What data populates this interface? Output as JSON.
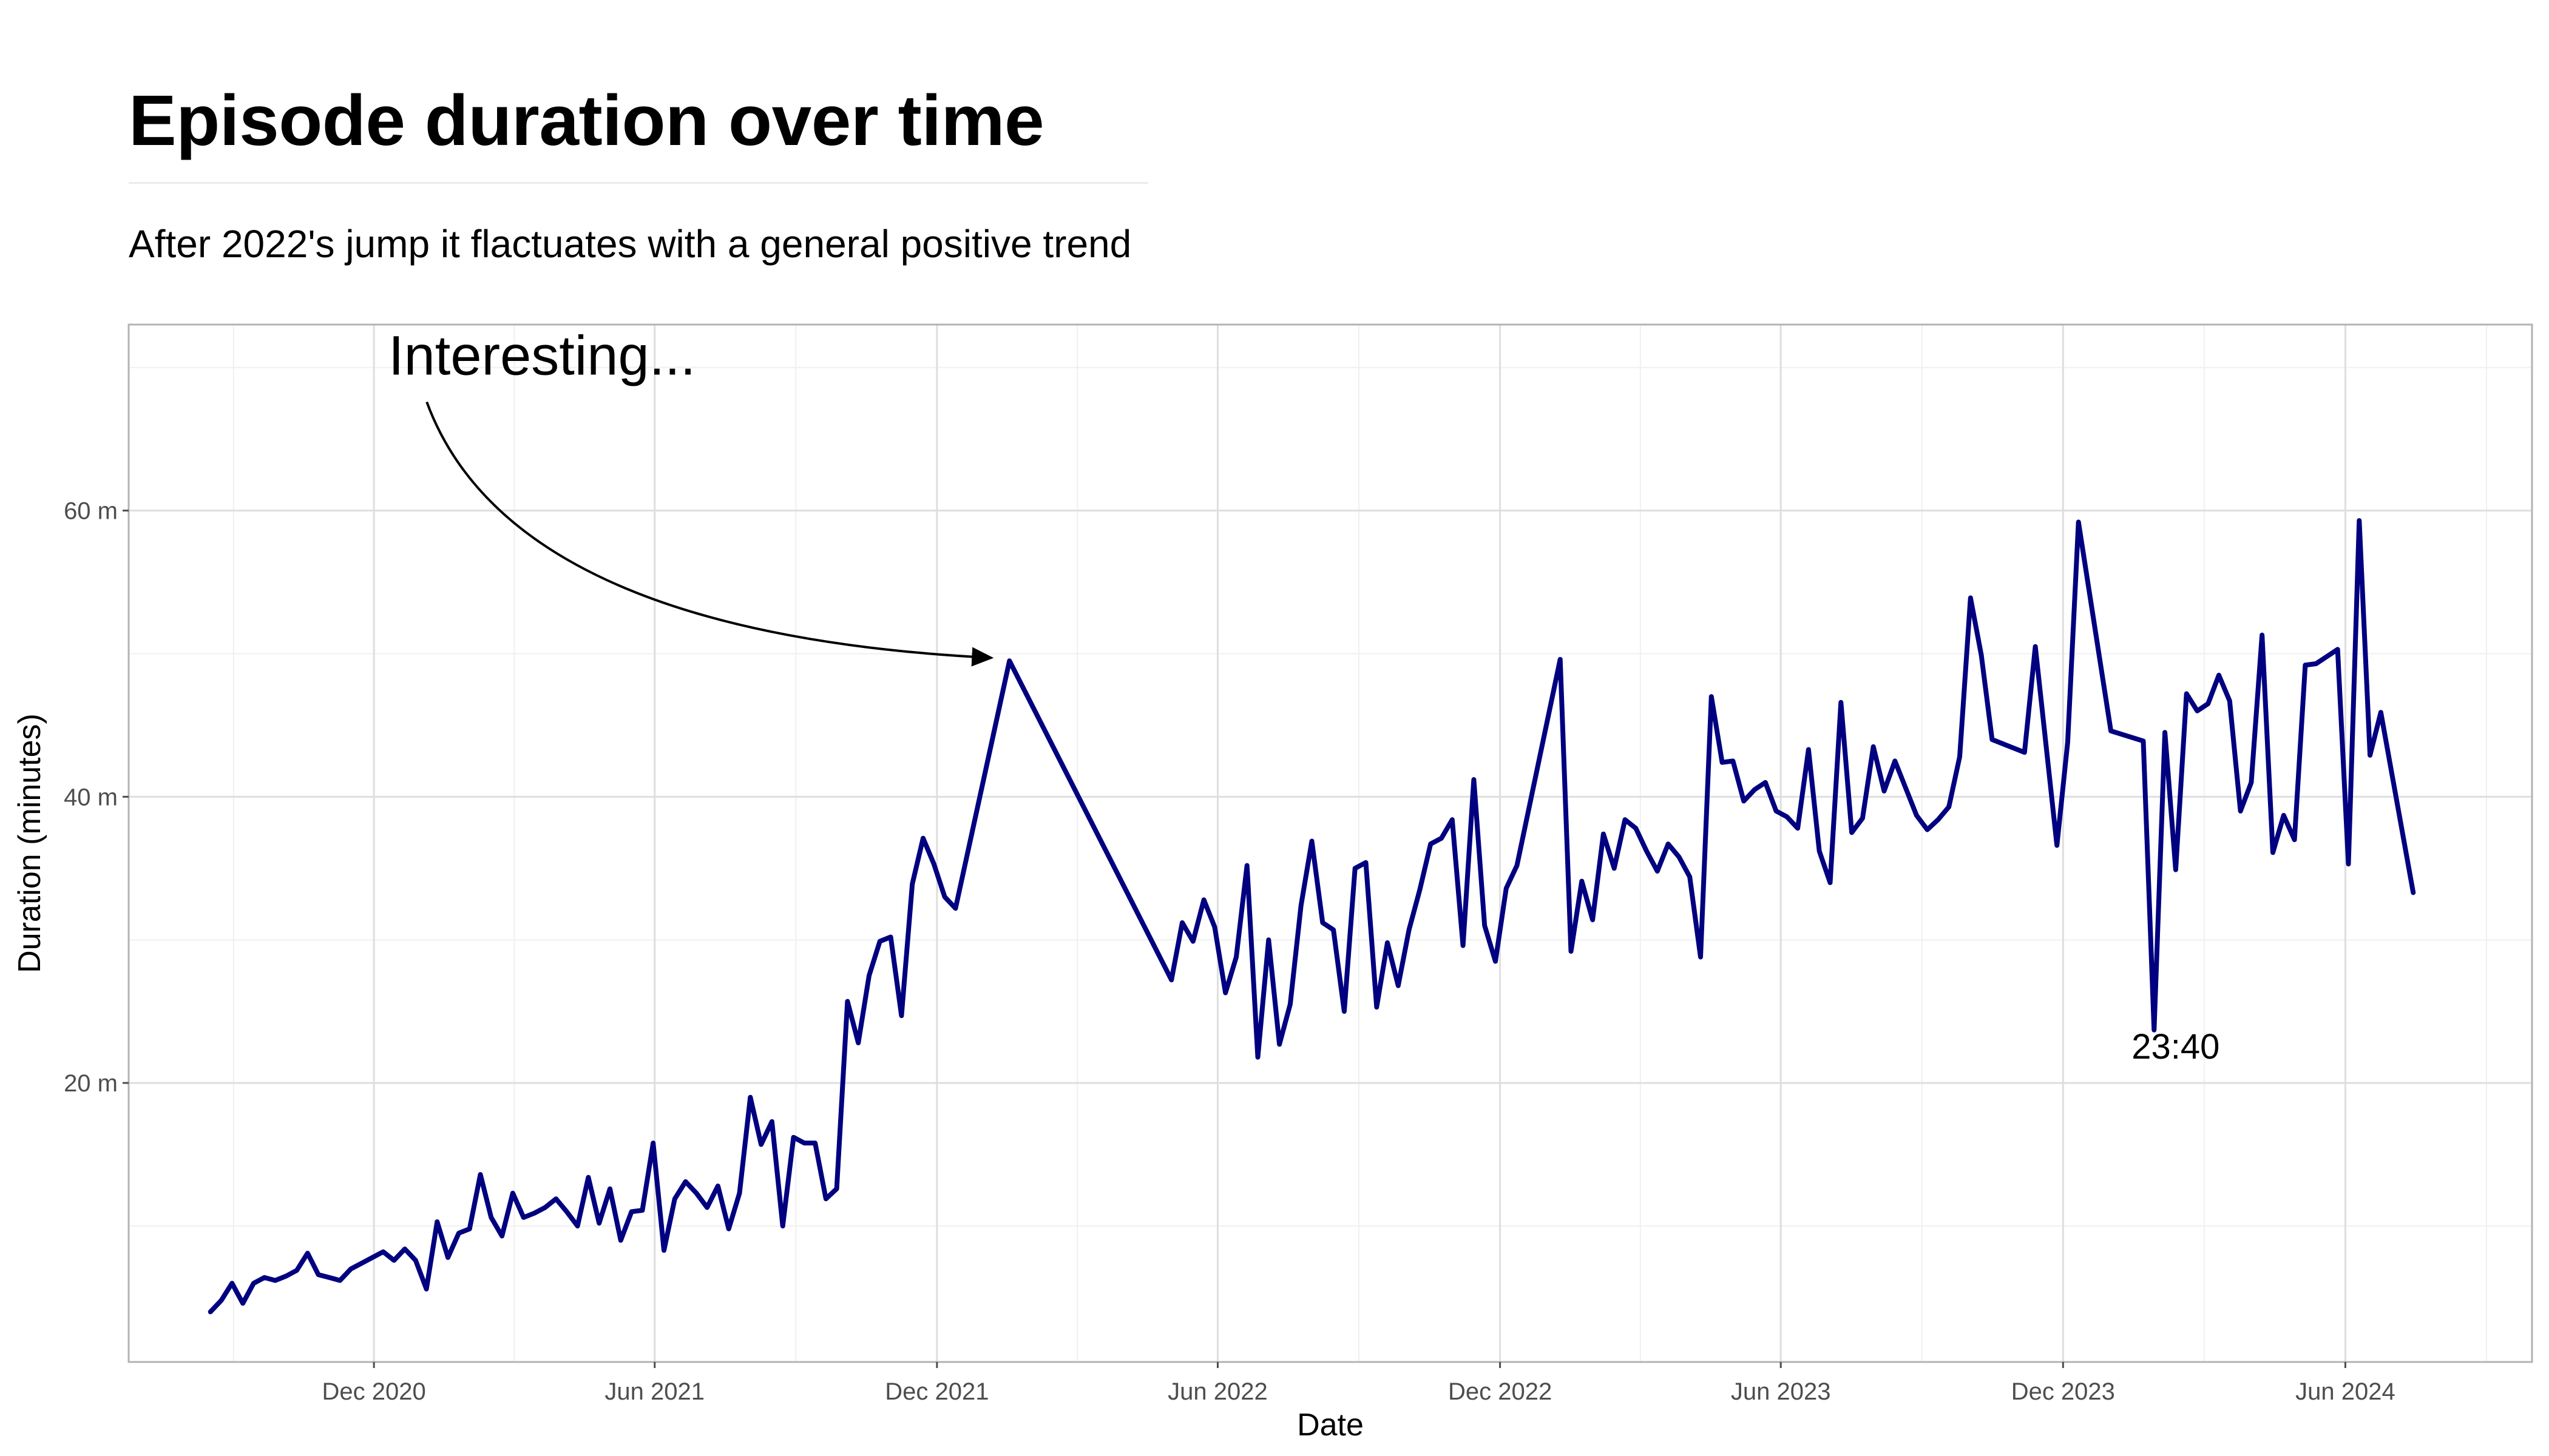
{
  "page": {
    "title": "Episode duration over time",
    "subtitle": "After 2022's jump it flactuates with a general positive trend"
  },
  "chart_data": {
    "type": "line",
    "title": "Episode duration over time",
    "subtitle": "After 2022's jump it flactuates with a general positive trend",
    "xlabel": "Date",
    "ylabel": "Duration (minutes)",
    "xlim": [
      "2020-06-25",
      "2024-09-30"
    ],
    "ylim": [
      0.5,
      73
    ],
    "x_ticks": [
      {
        "date": "2020-12-01",
        "label": "Dec 2020"
      },
      {
        "date": "2021-06-01",
        "label": "Jun 2021"
      },
      {
        "date": "2021-12-01",
        "label": "Dec 2021"
      },
      {
        "date": "2022-06-01",
        "label": "Jun 2022"
      },
      {
        "date": "2022-12-01",
        "label": "Dec 2022"
      },
      {
        "date": "2023-06-01",
        "label": "Jun 2023"
      },
      {
        "date": "2023-12-01",
        "label": "Dec 2023"
      },
      {
        "date": "2024-06-01",
        "label": "Jun 2024"
      }
    ],
    "y_ticks": [
      {
        "value": 20,
        "label": "20 m"
      },
      {
        "value": 40,
        "label": "40 m"
      },
      {
        "value": 60,
        "label": "60 m"
      }
    ],
    "grid": true,
    "line_color": "#000080",
    "series": [
      {
        "x": [
          "2020-08-17",
          "2020-08-24",
          "2020-08-31",
          "2020-09-07",
          "2020-09-14",
          "2020-09-21",
          "2020-09-28",
          "2020-10-05",
          "2020-10-12",
          "2020-10-19",
          "2020-10-26",
          "2020-11-02",
          "2020-11-09",
          "2020-11-16",
          "2020-11-23",
          "2020-11-30",
          "2020-12-07",
          "2020-12-14",
          "2020-12-21",
          "2020-12-28",
          "2021-01-04",
          "2021-01-11",
          "2021-01-18",
          "2021-01-25",
          "2021-02-01",
          "2021-02-08",
          "2021-02-15",
          "2021-02-22",
          "2021-03-01",
          "2021-03-08",
          "2021-03-15",
          "2021-03-22",
          "2021-03-29",
          "2021-04-05",
          "2021-04-12",
          "2021-04-19",
          "2021-04-26",
          "2021-05-03",
          "2021-05-10",
          "2021-05-17",
          "2021-05-24",
          "2021-05-31",
          "2021-06-07",
          "2021-06-14",
          "2021-06-21",
          "2021-06-28",
          "2021-07-05",
          "2021-07-12",
          "2021-07-19",
          "2021-07-26",
          "2021-08-02",
          "2021-08-09",
          "2021-08-16",
          "2021-08-23",
          "2021-08-30",
          "2021-09-06",
          "2021-09-13",
          "2021-09-20",
          "2021-09-27",
          "2021-10-04",
          "2021-10-11",
          "2021-10-18",
          "2021-10-25",
          "2021-11-01",
          "2021-11-08",
          "2021-11-15",
          "2021-11-22",
          "2021-11-29",
          "2021-12-06",
          "2021-12-13",
          "2022-01-17",
          "2022-05-02",
          "2022-05-09",
          "2022-05-16",
          "2022-05-23",
          "2022-05-30",
          "2022-06-06",
          "2022-06-13",
          "2022-06-20",
          "2022-06-27",
          "2022-07-04",
          "2022-07-11",
          "2022-07-18",
          "2022-07-25",
          "2022-08-01",
          "2022-08-08",
          "2022-08-15",
          "2022-08-22",
          "2022-08-29",
          "2022-09-05",
          "2022-09-12",
          "2022-09-19",
          "2022-09-26",
          "2022-10-03",
          "2022-10-10",
          "2022-10-17",
          "2022-10-24",
          "2022-10-31",
          "2022-11-07",
          "2022-11-14",
          "2022-11-21",
          "2022-11-28",
          "2022-12-05",
          "2022-12-12",
          "2023-01-09",
          "2023-01-16",
          "2023-01-23",
          "2023-01-30",
          "2023-02-06",
          "2023-02-13",
          "2023-02-20",
          "2023-02-27",
          "2023-03-06",
          "2023-03-13",
          "2023-03-20",
          "2023-03-27",
          "2023-04-03",
          "2023-04-10",
          "2023-04-17",
          "2023-04-24",
          "2023-05-01",
          "2023-05-08",
          "2023-05-15",
          "2023-05-22",
          "2023-05-29",
          "2023-06-05",
          "2023-06-12",
          "2023-06-19",
          "2023-06-26",
          "2023-07-03",
          "2023-07-10",
          "2023-07-17",
          "2023-07-24",
          "2023-07-31",
          "2023-08-07",
          "2023-08-14",
          "2023-08-21",
          "2023-08-28",
          "2023-09-04",
          "2023-09-11",
          "2023-09-18",
          "2023-09-25",
          "2023-10-02",
          "2023-10-09",
          "2023-10-16",
          "2023-11-06",
          "2023-11-13",
          "2023-11-27",
          "2023-12-04",
          "2023-12-11",
          "2024-01-01",
          "2024-01-22",
          "2024-01-29",
          "2024-02-05",
          "2024-02-12",
          "2024-02-19",
          "2024-02-26",
          "2024-03-04",
          "2024-03-11",
          "2024-03-18",
          "2024-03-25",
          "2024-04-01",
          "2024-04-08",
          "2024-04-15",
          "2024-04-22",
          "2024-04-29",
          "2024-05-06",
          "2024-05-13",
          "2024-05-20",
          "2024-05-27",
          "2024-06-03",
          "2024-06-10",
          "2024-06-17",
          "2024-06-24",
          "2024-07-15"
        ],
        "y": [
          4.0,
          4.8,
          6.0,
          4.6,
          6.0,
          6.4,
          6.2,
          6.5,
          6.9,
          8.1,
          6.6,
          6.4,
          6.2,
          7.0,
          7.4,
          7.8,
          8.2,
          7.6,
          8.4,
          7.6,
          5.6,
          10.3,
          7.8,
          9.5,
          9.8,
          13.6,
          10.6,
          9.3,
          12.3,
          10.6,
          10.9,
          11.3,
          11.9,
          11.0,
          10.0,
          13.4,
          10.2,
          12.6,
          9.0,
          11.0,
          11.1,
          15.8,
          8.3,
          11.9,
          13.1,
          12.3,
          11.3,
          12.8,
          9.8,
          12.3,
          19.0,
          15.7,
          17.3,
          10.0,
          16.2,
          15.8,
          15.8,
          11.9,
          12.6,
          25.7,
          22.8,
          27.5,
          29.9,
          30.2,
          24.7,
          33.9,
          37.1,
          35.3,
          33.0,
          32.2,
          49.5,
          27.2,
          31.2,
          29.9,
          32.8,
          30.9,
          26.3,
          28.8,
          35.2,
          21.8,
          30.0,
          22.7,
          25.5,
          32.4,
          36.9,
          31.2,
          30.7,
          25.0,
          35.0,
          35.4,
          25.3,
          29.8,
          26.8,
          30.7,
          33.5,
          36.7,
          37.1,
          38.4,
          29.6,
          41.2,
          31.0,
          28.5,
          33.6,
          35.2,
          49.6,
          29.2,
          34.1,
          31.4,
          37.4,
          35.0,
          38.4,
          37.8,
          36.2,
          34.8,
          36.7,
          35.8,
          34.4,
          28.8,
          47.0,
          42.4,
          42.5,
          39.7,
          40.5,
          41.0,
          39.0,
          38.6,
          37.8,
          43.3,
          36.2,
          34.0,
          46.6,
          37.5,
          38.5,
          43.5,
          40.4,
          42.5,
          40.6,
          38.7,
          37.7,
          38.4,
          39.3,
          42.8,
          53.9,
          49.9,
          44.0,
          43.1,
          50.5,
          36.6,
          43.8,
          59.2,
          44.6,
          43.9,
          23.7,
          44.5,
          34.9,
          47.2,
          46.0,
          46.5,
          48.5,
          46.7,
          39.0,
          41.0,
          51.3,
          36.1,
          38.7,
          37.0,
          49.2,
          49.3,
          49.8,
          50.3,
          35.3,
          59.3,
          42.9,
          45.9,
          33.3
        ]
      }
    ],
    "annotations": [
      {
        "text": "Interesting...",
        "date": "2021-03-20",
        "value": 69.5
      },
      {
        "text": "23:40",
        "date": "2024-02-12",
        "value": 21.7
      }
    ]
  }
}
